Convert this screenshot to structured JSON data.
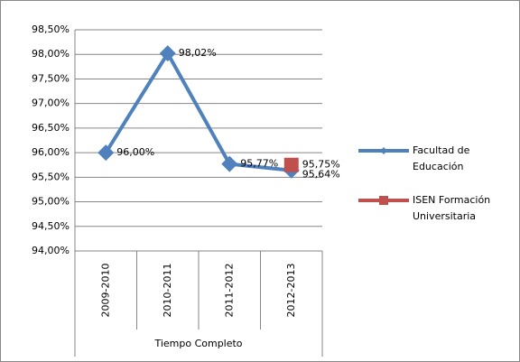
{
  "chart_data": {
    "type": "line",
    "categories": [
      "2009-2010",
      "2010-2011",
      "2011-2012",
      "2012-2013"
    ],
    "category_group": "Tiempo Completo",
    "series": [
      {
        "name": "Facultad de Educación",
        "color": "#4f81bd",
        "marker": "diamond",
        "values": [
          96.0,
          98.02,
          95.77,
          95.64
        ],
        "value_labels": [
          "96,00%",
          "98,02%",
          "95,77%",
          "95,64%"
        ]
      },
      {
        "name": "ISEN Formación Universitaria",
        "color": "#c0504d",
        "marker": "square",
        "values": [
          null,
          null,
          null,
          95.75
        ],
        "value_labels": [
          null,
          null,
          null,
          "95,75%"
        ]
      }
    ],
    "ylim": [
      94,
      98.5
    ],
    "yticks": [
      {
        "value": 94,
        "label": "94,00%"
      },
      {
        "value": 94.5,
        "label": "94,50%"
      },
      {
        "value": 95,
        "label": "95,00%"
      },
      {
        "value": 95.5,
        "label": "95,50%"
      },
      {
        "value": 96,
        "label": "96,00%"
      },
      {
        "value": 96.5,
        "label": "96,50%"
      },
      {
        "value": 97,
        "label": "97,00%"
      },
      {
        "value": 97.5,
        "label": "97,50%"
      },
      {
        "value": 98,
        "label": "98,00%"
      },
      {
        "value": 98.5,
        "label": "98,50%"
      }
    ],
    "grid": true,
    "legend": "right"
  }
}
